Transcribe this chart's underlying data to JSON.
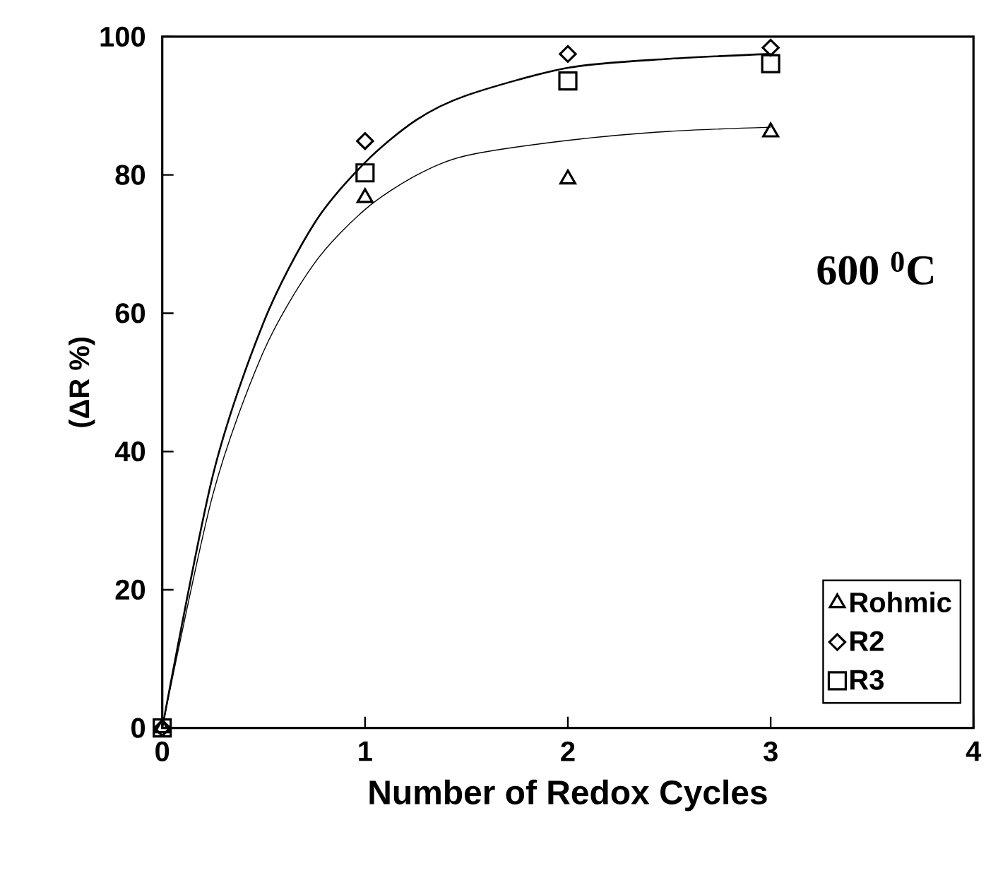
{
  "chart_data": {
    "type": "scatter",
    "xlabel": "Number of Redox Cycles",
    "ylabel": "(ΔR %)",
    "xlim": [
      0,
      4
    ],
    "xticks": [
      0,
      1,
      2,
      3,
      4
    ],
    "ylim": [
      0,
      100
    ],
    "yticks": [
      0,
      20,
      40,
      60,
      80,
      100
    ],
    "grid": false,
    "legend": "bottom right",
    "annotations": [
      "600 $^{0}$C"
    ],
    "series": [
      {
        "name": "Rohmic",
        "marker": "triangle",
        "color": "#000000",
        "x": [
          0,
          1,
          2,
          3
        ],
        "values": [
          0,
          76.7,
          79.4,
          86.2
        ]
      },
      {
        "name": "R2",
        "marker": "diamond",
        "color": "#000000",
        "x": [
          0,
          1,
          2,
          3
        ],
        "values": [
          0,
          84.9,
          97.5,
          98.4
        ]
      },
      {
        "name": "R3",
        "marker": "square",
        "color": "#000000",
        "x": [
          0,
          1,
          2,
          3
        ],
        "values": [
          0,
          80.3,
          93.6,
          96.1
        ]
      },
      {
        "type": "line",
        "marker": "none",
        "color": "#000000",
        "x": [
          0,
          0.25,
          0.5,
          0.75,
          1,
          1.25,
          1.5,
          2,
          2.5,
          3
        ],
        "values": [
          0,
          36.6,
          58.7,
          73.0,
          81.8,
          87.9,
          91.5,
          95.5,
          96.8,
          97.5
        ]
      },
      {
        "type": "line",
        "marker": "none",
        "color": "#000000",
        "x": [
          0,
          0.25,
          0.5,
          0.75,
          1,
          1.25,
          1.5,
          2,
          2.5,
          3
        ],
        "values": [
          0,
          33.8,
          54.5,
          67.2,
          75.0,
          79.9,
          82.8,
          85.0,
          86.3,
          86.9
        ]
      }
    ]
  }
}
